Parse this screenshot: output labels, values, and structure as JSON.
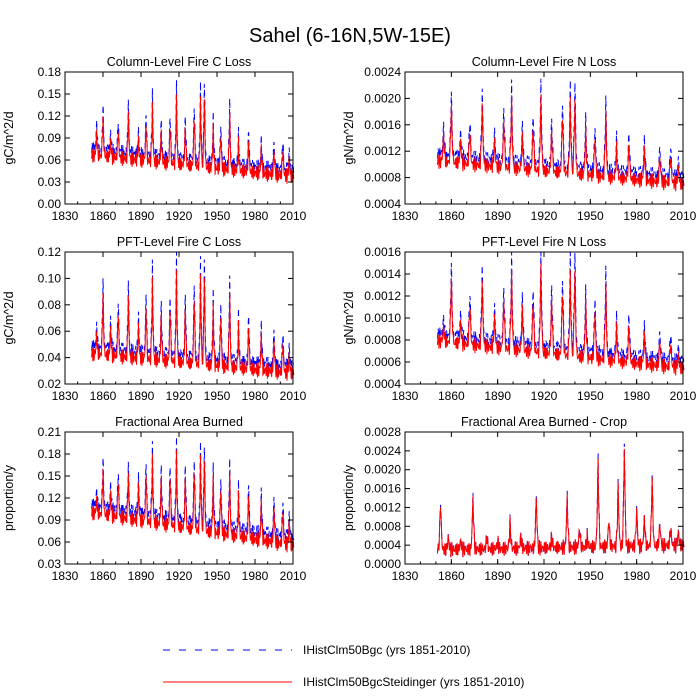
{
  "figure": {
    "title": "Sahel (6-16N,5W-15E)"
  },
  "legend": [
    {
      "label": "IHistClm50Bgc (yrs 1851-2010)",
      "color": "#0000ff",
      "style": "dashed"
    },
    {
      "label": "IHistClm50BgcSteidinger (yrs 1851-2010)",
      "color": "#ff0000",
      "style": "solid"
    }
  ],
  "chart_data": [
    {
      "type": "line",
      "title": "Column-Level Fire C Loss",
      "ylabel": "gC/m^2/d",
      "xlim": [
        1830,
        2010
      ],
      "xticks": [
        1830,
        1860,
        1890,
        1920,
        1950,
        1980,
        2010
      ],
      "ylim": [
        0,
        0.18
      ],
      "yticks": [
        "0.00",
        "0.03",
        "0.06",
        "0.09",
        "0.12",
        "0.15",
        "0.18"
      ],
      "baseline_start": 0.075,
      "baseline_end": 0.045,
      "peaks": [
        [
          1855,
          0.11
        ],
        [
          1860,
          0.135
        ],
        [
          1866,
          0.098
        ],
        [
          1872,
          0.116
        ],
        [
          1880,
          0.138
        ],
        [
          1888,
          0.1
        ],
        [
          1894,
          0.125
        ],
        [
          1899,
          0.15
        ],
        [
          1906,
          0.11
        ],
        [
          1913,
          0.125
        ],
        [
          1918,
          0.16
        ],
        [
          1925,
          0.12
        ],
        [
          1932,
          0.14
        ],
        [
          1937,
          0.16
        ],
        [
          1940,
          0.165
        ],
        [
          1947,
          0.118
        ],
        [
          1953,
          0.11
        ],
        [
          1960,
          0.14
        ],
        [
          1967,
          0.095
        ],
        [
          1975,
          0.1
        ],
        [
          1985,
          0.09
        ],
        [
          1995,
          0.088
        ],
        [
          2002,
          0.09
        ],
        [
          2007,
          0.075
        ]
      ],
      "series": [
        {
          "name": "IHistClm50Bgc",
          "peak_scale": 1.0,
          "offset": 0.0
        },
        {
          "name": "IHistClm50BgcSteidinger",
          "peak_scale": 0.88,
          "offset": -0.008
        }
      ]
    },
    {
      "type": "line",
      "title": "Column-Level Fire N Loss",
      "ylabel": "gN/m^2/d",
      "xlim": [
        1830,
        2010
      ],
      "xticks": [
        1830,
        1860,
        1890,
        1920,
        1950,
        1980,
        2010
      ],
      "ylim": [
        0.0004,
        0.0024
      ],
      "yticks": [
        "0.0004",
        "0.0008",
        "0.0012",
        "0.0016",
        "0.0020",
        "0.0024"
      ],
      "baseline_start": 0.00115,
      "baseline_end": 0.0008,
      "peaks": [
        [
          1855,
          0.0016
        ],
        [
          1860,
          0.0021
        ],
        [
          1866,
          0.0015
        ],
        [
          1872,
          0.0017
        ],
        [
          1880,
          0.0021
        ],
        [
          1888,
          0.0015
        ],
        [
          1894,
          0.0019
        ],
        [
          1899,
          0.0022
        ],
        [
          1906,
          0.0016
        ],
        [
          1913,
          0.0018
        ],
        [
          1918,
          0.0022
        ],
        [
          1925,
          0.0017
        ],
        [
          1932,
          0.002
        ],
        [
          1937,
          0.0022
        ],
        [
          1940,
          0.00225
        ],
        [
          1947,
          0.0017
        ],
        [
          1953,
          0.0016
        ],
        [
          1960,
          0.002
        ],
        [
          1967,
          0.0014
        ],
        [
          1975,
          0.0015
        ],
        [
          1985,
          0.0014
        ],
        [
          1995,
          0.0013
        ],
        [
          2002,
          0.0013
        ],
        [
          2007,
          0.0011
        ]
      ],
      "series": [
        {
          "name": "IHistClm50Bgc",
          "peak_scale": 1.0,
          "offset": 0.0
        },
        {
          "name": "IHistClm50BgcSteidinger",
          "peak_scale": 0.88,
          "offset": -0.0001
        }
      ]
    },
    {
      "type": "line",
      "title": "PFT-Level Fire C Loss",
      "ylabel": "gC/m^2/d",
      "xlim": [
        1830,
        2010
      ],
      "xticks": [
        1830,
        1860,
        1890,
        1920,
        1950,
        1980,
        2010
      ],
      "ylim": [
        0.02,
        0.12
      ],
      "yticks": [
        "0.02",
        "0.04",
        "0.06",
        "0.08",
        "0.10",
        "0.12"
      ],
      "baseline_start": 0.048,
      "baseline_end": 0.033,
      "peaks": [
        [
          1855,
          0.065
        ],
        [
          1860,
          0.1
        ],
        [
          1866,
          0.07
        ],
        [
          1872,
          0.085
        ],
        [
          1880,
          0.096
        ],
        [
          1888,
          0.072
        ],
        [
          1894,
          0.09
        ],
        [
          1899,
          0.11
        ],
        [
          1906,
          0.08
        ],
        [
          1913,
          0.09
        ],
        [
          1918,
          0.115
        ],
        [
          1925,
          0.088
        ],
        [
          1932,
          0.1
        ],
        [
          1937,
          0.113
        ],
        [
          1940,
          0.115
        ],
        [
          1947,
          0.088
        ],
        [
          1953,
          0.083
        ],
        [
          1960,
          0.1
        ],
        [
          1967,
          0.072
        ],
        [
          1975,
          0.073
        ],
        [
          1985,
          0.066
        ],
        [
          1995,
          0.063
        ],
        [
          2002,
          0.061
        ],
        [
          2007,
          0.05
        ]
      ],
      "series": [
        {
          "name": "IHistClm50Bgc",
          "peak_scale": 1.0,
          "offset": 0.0
        },
        {
          "name": "IHistClm50BgcSteidinger",
          "peak_scale": 0.88,
          "offset": -0.005
        }
      ]
    },
    {
      "type": "line",
      "title": "PFT-Level Fire N Loss",
      "ylabel": "gN/m^2/d",
      "xlim": [
        1830,
        2010
      ],
      "xticks": [
        1830,
        1860,
        1890,
        1920,
        1950,
        1980,
        2010
      ],
      "ylim": [
        0.0004,
        0.0016
      ],
      "yticks": [
        "0.0004",
        "0.0006",
        "0.0008",
        "0.0010",
        "0.0012",
        "0.0014",
        "0.0016"
      ],
      "baseline_start": 0.00085,
      "baseline_end": 0.0006,
      "peaks": [
        [
          1855,
          0.001
        ],
        [
          1860,
          0.0015
        ],
        [
          1866,
          0.00105
        ],
        [
          1872,
          0.00125
        ],
        [
          1880,
          0.00145
        ],
        [
          1888,
          0.0011
        ],
        [
          1894,
          0.0013
        ],
        [
          1899,
          0.00155
        ],
        [
          1906,
          0.0012
        ],
        [
          1913,
          0.0013
        ],
        [
          1918,
          0.0016
        ],
        [
          1925,
          0.0013
        ],
        [
          1932,
          0.0014
        ],
        [
          1937,
          0.00155
        ],
        [
          1940,
          0.0016
        ],
        [
          1947,
          0.00125
        ],
        [
          1953,
          0.0012
        ],
        [
          1960,
          0.00145
        ],
        [
          1967,
          0.001
        ],
        [
          1975,
          0.00105
        ],
        [
          1985,
          0.00095
        ],
        [
          1995,
          0.0009
        ],
        [
          2002,
          0.00088
        ],
        [
          2007,
          0.00075
        ]
      ],
      "series": [
        {
          "name": "IHistClm50Bgc",
          "peak_scale": 1.0,
          "offset": 0.0
        },
        {
          "name": "IHistClm50BgcSteidinger",
          "peak_scale": 0.88,
          "offset": -6e-05
        }
      ]
    },
    {
      "type": "line",
      "title": "Fractional Area Burned",
      "ylabel": "proportion/y",
      "xlim": [
        1830,
        2010
      ],
      "xticks": [
        1830,
        1860,
        1890,
        1920,
        1950,
        1980,
        2010
      ],
      "ylim": [
        0.03,
        0.21
      ],
      "yticks": [
        "0.03",
        "0.06",
        "0.09",
        "0.12",
        "0.15",
        "0.18",
        "0.21"
      ],
      "baseline_start": 0.11,
      "baseline_end": 0.065,
      "peaks": [
        [
          1855,
          0.13
        ],
        [
          1860,
          0.175
        ],
        [
          1866,
          0.14
        ],
        [
          1872,
          0.16
        ],
        [
          1880,
          0.165
        ],
        [
          1888,
          0.15
        ],
        [
          1894,
          0.17
        ],
        [
          1899,
          0.19
        ],
        [
          1906,
          0.16
        ],
        [
          1913,
          0.17
        ],
        [
          1918,
          0.195
        ],
        [
          1925,
          0.165
        ],
        [
          1932,
          0.18
        ],
        [
          1937,
          0.19
        ],
        [
          1940,
          0.19
        ],
        [
          1947,
          0.16
        ],
        [
          1953,
          0.15
        ],
        [
          1960,
          0.17
        ],
        [
          1967,
          0.135
        ],
        [
          1975,
          0.14
        ],
        [
          1985,
          0.13
        ],
        [
          1995,
          0.125
        ],
        [
          2002,
          0.12
        ],
        [
          2007,
          0.1
        ]
      ],
      "series": [
        {
          "name": "IHistClm50Bgc",
          "peak_scale": 1.0,
          "offset": 0.0
        },
        {
          "name": "IHistClm50BgcSteidinger",
          "peak_scale": 0.92,
          "offset": -0.01
        }
      ]
    },
    {
      "type": "line",
      "title": "Fractional Area Burned - Crop",
      "ylabel": "proportion/y",
      "xlim": [
        1830,
        2010
      ],
      "xticks": [
        1830,
        1860,
        1890,
        1920,
        1950,
        1980,
        2010
      ],
      "ylim": [
        0,
        0.0028
      ],
      "yticks": [
        "0.0000",
        "0.0004",
        "0.0008",
        "0.0012",
        "0.0016",
        "0.0020",
        "0.0024",
        "0.0028"
      ],
      "baseline_start": 0.0003,
      "baseline_end": 0.0004,
      "peaks": [
        [
          1853,
          0.0014
        ],
        [
          1858,
          0.0006
        ],
        [
          1866,
          0.0005
        ],
        [
          1874,
          0.0015
        ],
        [
          1883,
          0.0006
        ],
        [
          1890,
          0.0005
        ],
        [
          1898,
          0.0009
        ],
        [
          1905,
          0.0006
        ],
        [
          1915,
          0.0015
        ],
        [
          1925,
          0.0006
        ],
        [
          1935,
          0.0015
        ],
        [
          1943,
          0.0008
        ],
        [
          1948,
          0.0006
        ],
        [
          1955,
          0.0023
        ],
        [
          1962,
          0.001
        ],
        [
          1968,
          0.0017
        ],
        [
          1972,
          0.0026
        ],
        [
          1980,
          0.0012
        ],
        [
          1985,
          0.001
        ],
        [
          1990,
          0.0019
        ],
        [
          1995,
          0.0009
        ],
        [
          2002,
          0.0008
        ],
        [
          2007,
          0.0007
        ]
      ],
      "series": [
        {
          "name": "IHistClm50Bgc",
          "peak_scale": 1.0,
          "offset": 0.0
        },
        {
          "name": "IHistClm50BgcSteidinger",
          "peak_scale": 0.95,
          "offset": 0.0
        }
      ]
    }
  ]
}
